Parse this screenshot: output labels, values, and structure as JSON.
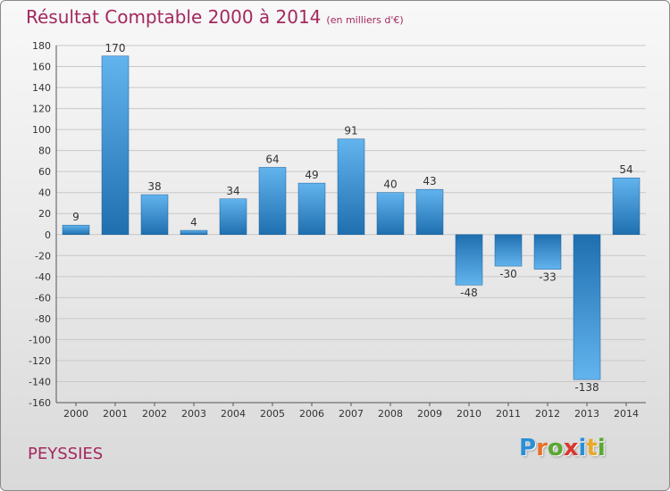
{
  "header": {
    "title": "Résultat Comptable 2000 à 2014",
    "subtitle": "(en milliers d'€)"
  },
  "footer": {
    "region": "PEYSSIES",
    "logo": {
      "text": "Proxiti",
      "letters": [
        {
          "char": "P",
          "color": "#2a8fd6"
        },
        {
          "char": "r",
          "color": "#e8702a"
        },
        {
          "char": "o",
          "color": "#5aa832"
        },
        {
          "char": "x",
          "color": "#d8382e"
        },
        {
          "char": "i",
          "color": "#2a8fd6"
        },
        {
          "char": "t",
          "color": "#e8a92a"
        },
        {
          "char": "i",
          "color": "#5aa832"
        }
      ]
    }
  },
  "colors": {
    "title": "#a3285e",
    "bar_light": "#62b4ee",
    "bar_dark": "#1f6faf"
  },
  "chart_data": {
    "type": "bar",
    "title": "Résultat Comptable 2000 à 2014",
    "subtitle": "(en milliers d'€)",
    "xlabel": "",
    "ylabel": "",
    "categories": [
      "2000",
      "2001",
      "2002",
      "2003",
      "2004",
      "2005",
      "2006",
      "2007",
      "2008",
      "2009",
      "2010",
      "2011",
      "2012",
      "2013",
      "2014"
    ],
    "values": [
      9,
      170,
      38,
      4,
      34,
      64,
      49,
      91,
      40,
      43,
      -48,
      -30,
      -33,
      -138,
      54
    ],
    "ylim": [
      -160,
      180
    ],
    "yticks": [
      180,
      160,
      140,
      120,
      100,
      80,
      60,
      40,
      20,
      0,
      -20,
      -40,
      -60,
      -80,
      -100,
      -120,
      -140,
      -160
    ],
    "grid": true,
    "legend": "none"
  }
}
